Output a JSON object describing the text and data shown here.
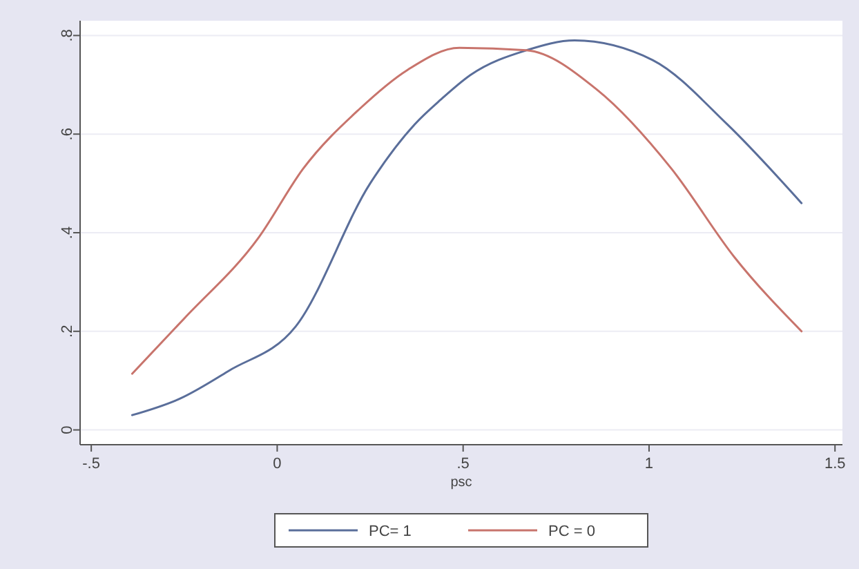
{
  "chart_data": {
    "type": "line",
    "xlabel": "psc",
    "xlim": [
      -0.53,
      1.52
    ],
    "xticks": [
      {
        "value": -0.5,
        "label": "-.5"
      },
      0,
      {
        "value": 0.5,
        "label": ".5"
      },
      1,
      1.5
    ],
    "ylim": [
      -0.03,
      0.83
    ],
    "yticks": [
      0,
      {
        "value": 0.2,
        "label": ".2"
      },
      {
        "value": 0.4,
        "label": ".4"
      },
      {
        "value": 0.6,
        "label": ".6"
      },
      {
        "value": 0.8,
        "label": ".8"
      }
    ],
    "grid": "y",
    "legend": "bottom",
    "line_style": "solid",
    "marker": "none",
    "series": [
      {
        "name": "PC= 1",
        "color": "#5a6e9a",
        "x": [
          -0.39,
          -0.26,
          -0.13,
          0.05,
          0.25,
          0.37,
          0.44,
          0.52,
          0.67,
          0.8,
          1.01,
          1.21,
          1.41
        ],
        "values": [
          0.03,
          0.064,
          0.12,
          0.21,
          0.5,
          0.62,
          0.67,
          0.72,
          0.77,
          0.79,
          0.75,
          0.62,
          0.46
        ]
      },
      {
        "name": "PC = 0",
        "color": "#c8746c",
        "x": [
          -0.39,
          -0.25,
          -0.05,
          0.07,
          0.22,
          0.35,
          0.49,
          0.67,
          0.86,
          1.06,
          1.23,
          1.41
        ],
        "values": [
          0.114,
          0.226,
          0.39,
          0.53,
          0.65,
          0.73,
          0.775,
          0.77,
          0.69,
          0.53,
          0.35,
          0.2
        ]
      }
    ]
  }
}
